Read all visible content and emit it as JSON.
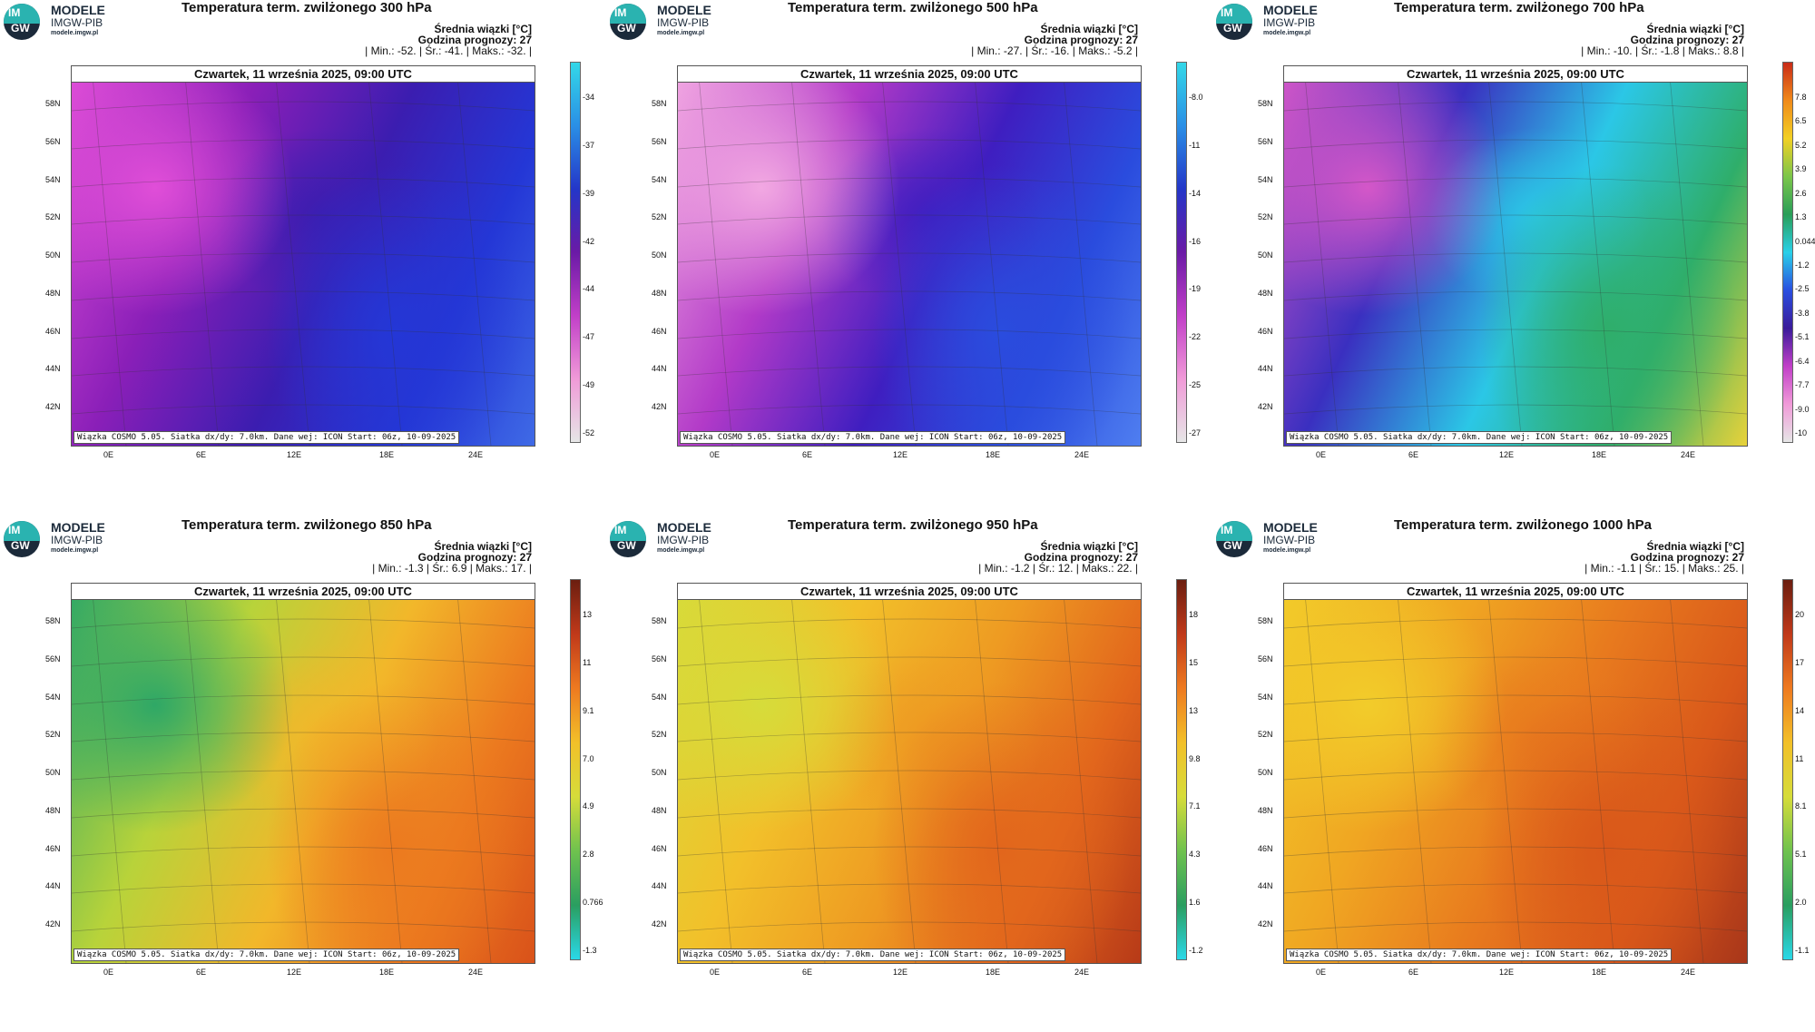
{
  "brand": {
    "name": "MODELE",
    "sub": "IMGW-PIB",
    "url": "modele.imgw.pl",
    "mark_top": "IM",
    "mark_bottom": "GW"
  },
  "common": {
    "date_line": "Czwartek, 11 września 2025, 09:00 UTC",
    "stats_title": "Średnia wiązki [°C]",
    "forecast_hour": "Godzina prognozy: 27",
    "credit": "Wiązka COSMO 5.05. Siatka dx/dy: 7.0km. Dane wej: ICON Start: 06z, 10-09-2025",
    "lat_labels": [
      "58N",
      "56N",
      "54N",
      "52N",
      "50N",
      "48N",
      "46N",
      "44N",
      "42N"
    ],
    "lon_labels": [
      "0E",
      "6E",
      "12E",
      "18E",
      "24E"
    ]
  },
  "panels": [
    {
      "title": "Temperatura term. zwilżonego 300 hPa",
      "stats_line": "| Min.:   -52. | Śr.:   -41. | Maks.:   -32. |",
      "colorbar_ticks": [
        "-34",
        "-37",
        "-39",
        "-42",
        "-44",
        "-47",
        "-49",
        "-52"
      ],
      "colors": [
        "#e04ed8",
        "#8a1fb8",
        "#3b1db0",
        "#2437d6",
        "#3f6ae6"
      ],
      "bar": [
        "#33d8e8",
        "#2a8fe6",
        "#2436c8",
        "#6a1aa6",
        "#c13fc8",
        "#f09ad8",
        "#e6e6e6"
      ]
    },
    {
      "title": "Temperatura term. zwilżonego 500 hPa",
      "stats_line": "| Min.:   -27. | Śr.:   -16. | Maks.:   -5.2 |",
      "colorbar_ticks": [
        "-8.0",
        "-11",
        "-14",
        "-16",
        "-19",
        "-22",
        "-25",
        "-27"
      ],
      "colors": [
        "#f2a8e2",
        "#b23ac8",
        "#3f1ec0",
        "#2a4cde",
        "#4f7ef0"
      ],
      "bar": [
        "#33d8e8",
        "#2a8fe6",
        "#2436c8",
        "#6a1aa6",
        "#c13fc8",
        "#f09ad8",
        "#e6e6e6"
      ]
    },
    {
      "title": "Temperatura term. zwilżonego 700 hPa",
      "stats_line": "| Min.:   -10. | Śr.:   -1.8 | Maks.:   8.8 |",
      "colorbar_ticks": [
        "7.8",
        "6.5",
        "5.2",
        "3.9",
        "2.6",
        "1.3",
        "0.044",
        "-1.2",
        "-2.5",
        "-3.8",
        "-5.1",
        "-6.4",
        "-7.7",
        "-9.0",
        "-10"
      ],
      "colors": [
        "#d457c8",
        "#3a2fc0",
        "#2bc7e6",
        "#2fae6a",
        "#e8d23a"
      ],
      "bar": [
        "#c92b18",
        "#f08a1a",
        "#f2d024",
        "#7cc64a",
        "#2a9e58",
        "#2ad0e8",
        "#2a4fe0",
        "#3a1b9a",
        "#c13fc8",
        "#f09ad8",
        "#e6e6e6"
      ]
    },
    {
      "title": "Temperatura term. zwilżonego 850 hPa",
      "stats_line": "| Min.:   -1.3 | Śr.:   6.9 | Maks.:   17. |",
      "colorbar_ticks": [
        "13",
        "11",
        "9.1",
        "7.0",
        "4.9",
        "2.8",
        "0.766",
        "-1.3"
      ],
      "colors": [
        "#2fa866",
        "#b8d33a",
        "#f2b72a",
        "#ec7a1f",
        "#d9521a"
      ],
      "bar": [
        "#6b1e10",
        "#c0391a",
        "#ee7a20",
        "#f2c029",
        "#d6dc3a",
        "#6fc24e",
        "#2a9e60",
        "#2ad8e8"
      ]
    },
    {
      "title": "Temperatura term. zwilżonego 950 hPa",
      "stats_line": "| Min.:   -1.2 | Śr.:   12. | Maks.:   22. |",
      "colorbar_ticks": [
        "18",
        "15",
        "13",
        "9.8",
        "7.1",
        "4.3",
        "1.6",
        "-1.2"
      ],
      "colors": [
        "#d6dc3a",
        "#f2c02a",
        "#ee9a22",
        "#e2661c",
        "#b73a18"
      ],
      "bar": [
        "#6b1e10",
        "#c0391a",
        "#ee7a20",
        "#f2c029",
        "#d6dc3a",
        "#6fc24e",
        "#2a9e60",
        "#2ad8e8"
      ]
    },
    {
      "title": "Temperatura term. zwilżonego 1000 hPa",
      "stats_line": "| Min.:   -1.1 | Śr.:   15. | Maks.:   25. |",
      "colorbar_ticks": [
        "20",
        "17",
        "14",
        "11",
        "8.1",
        "5.1",
        "2.0",
        "-1.1"
      ],
      "colors": [
        "#f2cc2a",
        "#f0a622",
        "#e87a1e",
        "#d9581a",
        "#a8361a"
      ],
      "bar": [
        "#6b1e10",
        "#c0391a",
        "#ee7a20",
        "#f2c029",
        "#d6dc3a",
        "#6fc24e",
        "#2a9e60",
        "#2ad8e8"
      ]
    }
  ]
}
